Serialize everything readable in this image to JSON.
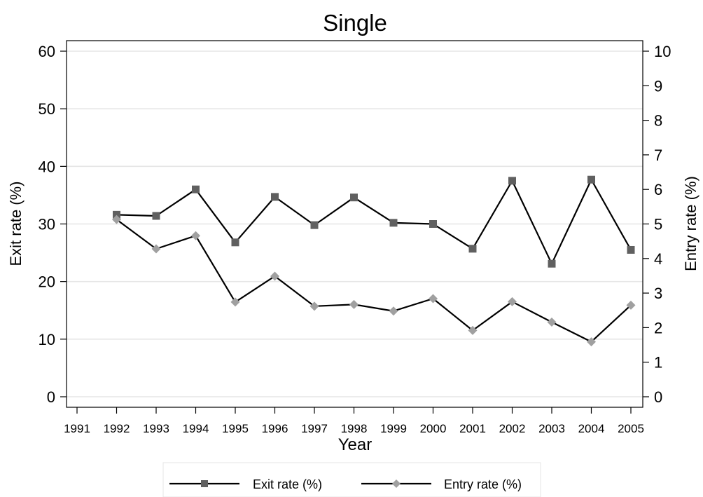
{
  "chart_data": {
    "type": "line",
    "title": "Single",
    "xlabel": "Year",
    "ylabel_left": "Exit rate (%)",
    "ylabel_right": "Entry rate (%)",
    "categories": [
      "1991",
      "1992",
      "1993",
      "1994",
      "1995",
      "1996",
      "1997",
      "1998",
      "1999",
      "2000",
      "2001",
      "2002",
      "2003",
      "2004",
      "2005"
    ],
    "ylim_left": [
      0,
      60
    ],
    "yticks_left": [
      "0",
      "10",
      "20",
      "30",
      "40",
      "50",
      "60"
    ],
    "ylim_right": [
      0,
      10
    ],
    "yticks_right": [
      "0",
      "1",
      "2",
      "3",
      "4",
      "5",
      "6",
      "7",
      "8",
      "9",
      "10"
    ],
    "grid": true,
    "legend_position": "bottom",
    "series": [
      {
        "name": "Exit rate (%)",
        "axis": "left",
        "marker": "square",
        "marker_color": "#606060",
        "x": [
          "1992",
          "1993",
          "1994",
          "1995",
          "1996",
          "1997",
          "1998",
          "1999",
          "2000",
          "2001",
          "2002",
          "2003",
          "2004",
          "2005"
        ],
        "values": [
          31.6,
          31.4,
          36.0,
          26.8,
          34.7,
          29.8,
          34.6,
          30.2,
          30.0,
          25.7,
          37.5,
          23.1,
          37.7,
          25.5
        ]
      },
      {
        "name": "Entry rate (%)",
        "axis": "right",
        "marker": "diamond",
        "marker_color": "#a0a0a0",
        "x": [
          "1992",
          "1993",
          "1994",
          "1995",
          "1996",
          "1997",
          "1998",
          "1999",
          "2000",
          "2001",
          "2002",
          "2003",
          "2004",
          "2005"
        ],
        "values": [
          5.13,
          4.28,
          4.66,
          2.74,
          3.49,
          2.62,
          2.67,
          2.48,
          2.84,
          1.92,
          2.75,
          2.16,
          1.59,
          2.65
        ]
      }
    ]
  }
}
